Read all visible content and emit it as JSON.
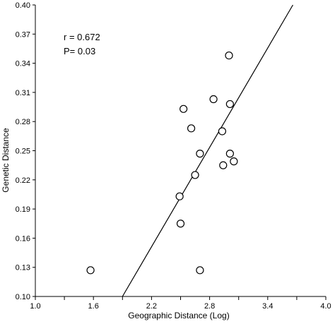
{
  "chart_data": {
    "type": "scatter",
    "xlabel": "Geographic Distance (Log)",
    "ylabel": "Genetic Distance",
    "xlim": [
      1.0,
      4.0
    ],
    "ylim": [
      0.1,
      0.4
    ],
    "x_ticks": [
      "1.0",
      "1.6",
      "2.2",
      "2.8",
      "3.4",
      "4.0"
    ],
    "x_tick_values": [
      1.0,
      1.6,
      2.2,
      2.8,
      3.4,
      4.0
    ],
    "x_minor_tick_values": [
      1.3,
      1.9,
      2.5,
      3.1,
      3.7
    ],
    "y_ticks": [
      "0.10",
      "0.13",
      "0.16",
      "0.19",
      "0.22",
      "0.25",
      "0.28",
      "0.31",
      "0.34",
      "0.37",
      "0.40"
    ],
    "y_tick_values": [
      0.1,
      0.13,
      0.16,
      0.19,
      0.22,
      0.25,
      0.28,
      0.31,
      0.34,
      0.37,
      0.4
    ],
    "grid": false,
    "points": [
      {
        "x": 1.57,
        "y": 0.127
      },
      {
        "x": 2.49,
        "y": 0.203
      },
      {
        "x": 2.5,
        "y": 0.175
      },
      {
        "x": 2.53,
        "y": 0.293
      },
      {
        "x": 2.61,
        "y": 0.273
      },
      {
        "x": 2.65,
        "y": 0.225
      },
      {
        "x": 2.7,
        "y": 0.247
      },
      {
        "x": 2.7,
        "y": 0.127
      },
      {
        "x": 2.84,
        "y": 0.303
      },
      {
        "x": 2.93,
        "y": 0.27
      },
      {
        "x": 2.94,
        "y": 0.235
      },
      {
        "x": 3.0,
        "y": 0.348
      },
      {
        "x": 3.01,
        "y": 0.298
      },
      {
        "x": 3.01,
        "y": 0.247
      },
      {
        "x": 3.05,
        "y": 0.239
      }
    ],
    "fit_line": {
      "x1": 1.9,
      "y1": 0.1,
      "x2": 3.66,
      "y2": 0.4
    },
    "annotations": {
      "r": "r = 0.672",
      "p": "P= 0.03"
    },
    "colors": {
      "axis": "#000000",
      "marker_stroke": "#000000",
      "marker_fill": "#ffffff",
      "line": "#000000"
    }
  }
}
